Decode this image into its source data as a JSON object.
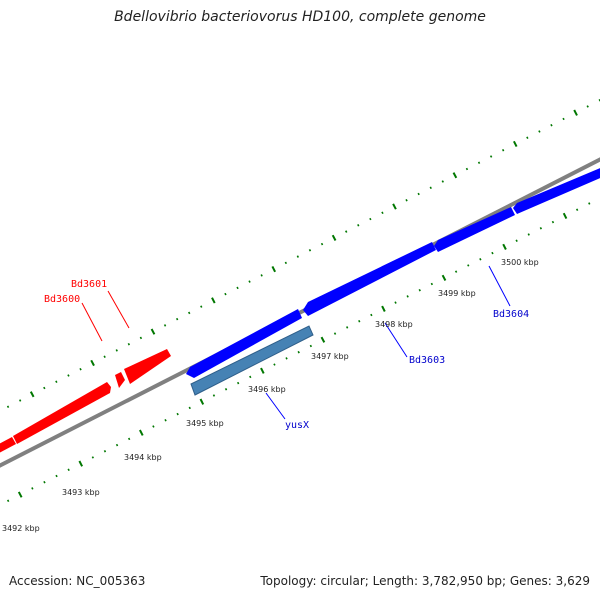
{
  "title": "Bdellovibrio bacteriovorus HD100, complete genome",
  "accession": "Accession: NC_005363",
  "summary": "Topology: circular; Length: 3,782,950 bp; Genes: 3,629",
  "colors": {
    "forward_gene": "#ff0000",
    "reverse_gene": "#0000ff",
    "feature": "#4682b4",
    "backbone": "#808080",
    "ticks": "#007700"
  },
  "kbp_labels": [
    "3492 kbp",
    "3493 kbp",
    "3494 kbp",
    "3495 kbp",
    "3496 kbp",
    "3497 kbp",
    "3498 kbp",
    "3499 kbp",
    "3500 kbp"
  ],
  "genes": {
    "bd3600": "Bd3600",
    "bd3601": "Bd3601",
    "bd3603": "Bd3603",
    "bd3604": "Bd3604",
    "yusx": "yusX"
  }
}
